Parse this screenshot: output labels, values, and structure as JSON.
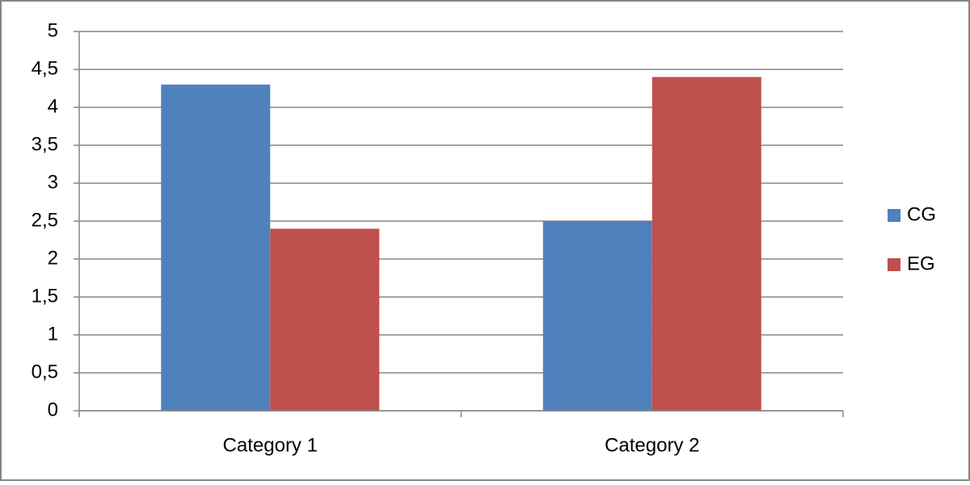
{
  "chart_data": {
    "type": "bar",
    "categories": [
      "Category 1",
      "Category 2"
    ],
    "series": [
      {
        "name": "CG",
        "color": "#4f81bd",
        "values": [
          4.3,
          2.5
        ]
      },
      {
        "name": "EG",
        "color": "#c0504d",
        "values": [
          2.4,
          4.4
        ]
      }
    ],
    "ylim": [
      0,
      5
    ],
    "yticks": [
      0,
      {
        "value": 0.5,
        "label": "0,5"
      },
      1,
      {
        "value": 1.5,
        "label": "1,5"
      },
      2,
      {
        "value": 2.5,
        "label": "2,5"
      },
      3,
      {
        "value": 3.5,
        "label": "3,5"
      },
      4,
      {
        "value": 4.5,
        "label": "4,5"
      },
      5
    ],
    "grid": true,
    "legend": "right"
  }
}
